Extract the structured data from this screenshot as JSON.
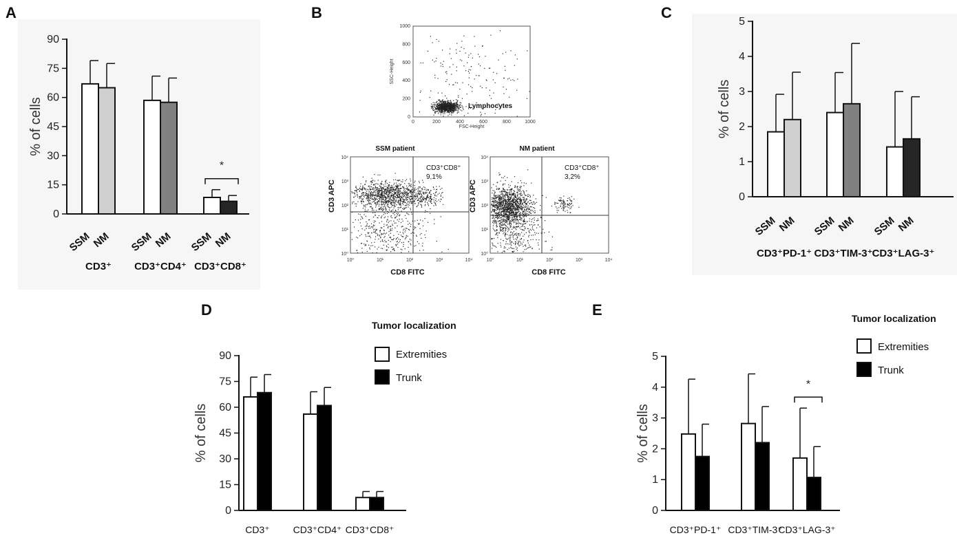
{
  "panels": {
    "A": {
      "letter": "A"
    },
    "B": {
      "letter": "B",
      "scatter_top": {
        "gate_label": "Lymphocytes",
        "x_axis": "FSC-Height",
        "y_axis": "SSC-Height",
        "x_ticks": [
          "0",
          "200",
          "400",
          "600",
          "800",
          "1000"
        ],
        "y_ticks": [
          "0",
          "200",
          "400",
          "600",
          "800",
          "1000"
        ]
      },
      "plot_ssm": {
        "title": "SSM patient",
        "quadrant_label": "CD3⁺CD8⁺",
        "quadrant_value": "9,1%",
        "x_axis": "CD8 FITC",
        "y_axis": "CD3 APC"
      },
      "plot_nm": {
        "title": "NM patient",
        "quadrant_label": "CD3⁺CD8⁺",
        "quadrant_value": "3,2%",
        "x_axis": "CD8 FITC",
        "y_axis": "CD3 APC"
      },
      "log_ticks": [
        "10⁰",
        "10¹",
        "10²",
        "10³",
        "10⁴"
      ]
    },
    "C": {
      "letter": "C"
    },
    "D": {
      "letter": "D"
    },
    "E": {
      "letter": "E"
    }
  },
  "legend_D": {
    "title": "Tumor localization",
    "items": [
      "Extremities",
      "Trunk"
    ]
  },
  "legend_E": {
    "title": "Tumor localization",
    "items": [
      "Extremities",
      "Trunk"
    ]
  },
  "colors": {
    "white": "#ffffff",
    "light_gray": "#d0d0d0",
    "mid_gray": "#808080",
    "dark": "#262626",
    "black": "#000000"
  },
  "chart_data": [
    {
      "id": "A",
      "type": "bar",
      "ylabel": "% of cells",
      "ylim": [
        0,
        90
      ],
      "yticks": [
        0,
        15,
        30,
        45,
        60,
        75,
        90
      ],
      "groups": [
        "CD3⁺",
        "CD3⁺CD4⁺",
        "CD3⁺CD8⁺"
      ],
      "bar_labels": [
        "SSM",
        "NM"
      ],
      "series": [
        {
          "name": "SSM",
          "values": [
            67,
            58.5,
            8.5
          ],
          "errors": [
            12,
            12.5,
            4
          ],
          "fill": "#ffffff"
        },
        {
          "name": "NM",
          "values": [
            65,
            57.5,
            6.5
          ],
          "errors": [
            12.5,
            12.5,
            3
          ],
          "fill_by_group": [
            "#d0d0d0",
            "#808080",
            "#262626"
          ]
        }
      ],
      "annotations": [
        {
          "group": 2,
          "text": "*"
        }
      ]
    },
    {
      "id": "C",
      "type": "bar",
      "ylabel": "% of cells",
      "ylim": [
        0,
        5
      ],
      "yticks": [
        0,
        1,
        2,
        3,
        4,
        5
      ],
      "groups": [
        "CD3⁺PD-1⁺",
        "CD3⁺TIM-3⁺",
        "CD3⁺LAG-3⁺"
      ],
      "bar_labels": [
        "SSM",
        "NM"
      ],
      "series": [
        {
          "name": "SSM",
          "values": [
            1.85,
            2.4,
            1.42
          ],
          "errors": [
            1.07,
            1.14,
            1.58
          ],
          "fill": "#ffffff"
        },
        {
          "name": "NM",
          "values": [
            2.2,
            2.65,
            1.65
          ],
          "errors": [
            1.35,
            1.72,
            1.2
          ],
          "fill_by_group": [
            "#d0d0d0",
            "#808080",
            "#262626"
          ]
        }
      ]
    },
    {
      "id": "D",
      "type": "bar",
      "ylabel": "% of cells",
      "ylim": [
        0,
        90
      ],
      "yticks": [
        0,
        15,
        30,
        45,
        60,
        75,
        90
      ],
      "groups": [
        "CD3⁺",
        "CD3⁺CD4⁺",
        "CD3⁺CD8⁺"
      ],
      "series": [
        {
          "name": "Extremities",
          "values": [
            66,
            56,
            7.5
          ],
          "errors": [
            11.5,
            13,
            3.5
          ],
          "fill": "#ffffff"
        },
        {
          "name": "Trunk",
          "values": [
            68.5,
            61,
            7.5
          ],
          "errors": [
            10.5,
            10.5,
            3.5
          ],
          "fill": "#000000"
        }
      ]
    },
    {
      "id": "E",
      "type": "bar",
      "ylabel": "% of cells",
      "ylim": [
        0,
        5
      ],
      "yticks": [
        0,
        1,
        2,
        3,
        4,
        5
      ],
      "groups": [
        "CD3⁺PD-1⁺",
        "CD3⁺TIM-3⁺",
        "CD3⁺LAG-3⁺"
      ],
      "series": [
        {
          "name": "Extremities",
          "values": [
            2.48,
            2.82,
            1.7
          ],
          "errors": [
            1.78,
            1.61,
            1.62
          ],
          "fill": "#ffffff"
        },
        {
          "name": "Trunk",
          "values": [
            1.75,
            2.2,
            1.07
          ],
          "errors": [
            1.05,
            1.17,
            1.0
          ],
          "fill": "#000000"
        }
      ],
      "annotations": [
        {
          "group": 2,
          "text": "*"
        }
      ]
    }
  ]
}
